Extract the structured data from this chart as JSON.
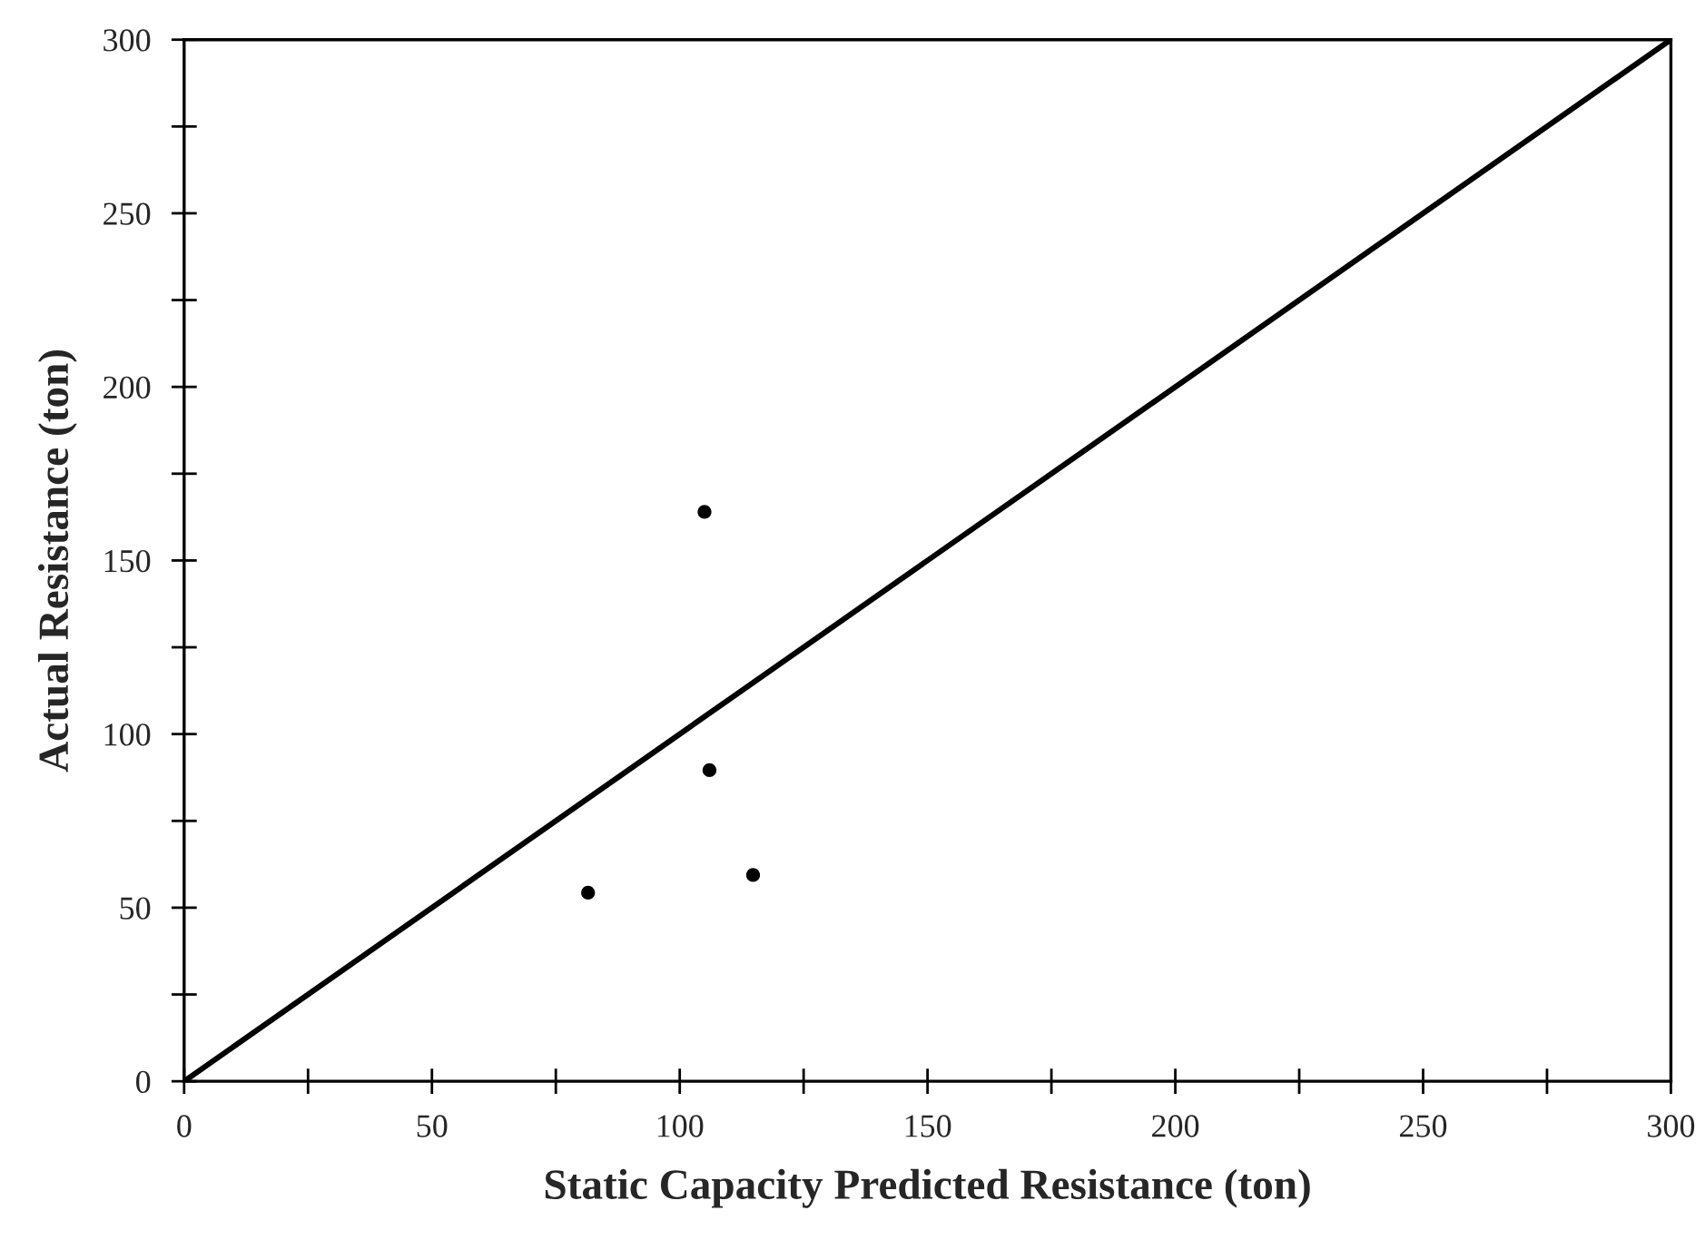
{
  "chart_data": {
    "type": "scatter",
    "xlabel": "Static Capacity Predicted Resistance (ton)",
    "ylabel": "Actual Resistance (ton)",
    "xlim": [
      0,
      300
    ],
    "ylim": [
      0,
      300
    ],
    "xticks": [
      0,
      {
        "value": 25,
        "label": null
      },
      50,
      {
        "value": 75,
        "label": null
      },
      100,
      {
        "value": 125,
        "label": null
      },
      150,
      {
        "value": 175,
        "label": null
      },
      200,
      {
        "value": 225,
        "label": null
      },
      250,
      {
        "value": 275,
        "label": null
      },
      300
    ],
    "yticks": [
      0,
      {
        "value": 25,
        "label": null
      },
      50,
      {
        "value": 75,
        "label": null
      },
      100,
      {
        "value": 125,
        "label": null
      },
      150,
      {
        "value": 175,
        "label": null
      },
      200,
      {
        "value": 225,
        "label": null
      },
      250,
      {
        "value": 275,
        "label": null
      },
      300
    ],
    "grid": false,
    "legend": false,
    "series": [
      {
        "marker": "circle",
        "color": "#000000",
        "x": [
          105,
          106,
          81.5,
          114.8
        ],
        "values": [
          164,
          89.6,
          54.3,
          59.4
        ]
      },
      {
        "type": "line",
        "color": "#000000",
        "line_style": "solid",
        "x": [
          0,
          300
        ],
        "values": [
          0,
          300
        ]
      }
    ]
  }
}
